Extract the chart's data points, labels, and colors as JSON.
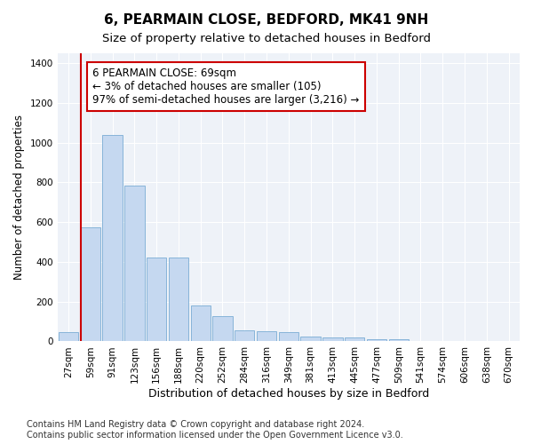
{
  "title": "6, PEARMAIN CLOSE, BEDFORD, MK41 9NH",
  "subtitle": "Size of property relative to detached houses in Bedford",
  "xlabel": "Distribution of detached houses by size in Bedford",
  "ylabel": "Number of detached properties",
  "categories": [
    "27sqm",
    "59sqm",
    "91sqm",
    "123sqm",
    "156sqm",
    "188sqm",
    "220sqm",
    "252sqm",
    "284sqm",
    "316sqm",
    "349sqm",
    "381sqm",
    "413sqm",
    "445sqm",
    "477sqm",
    "509sqm",
    "541sqm",
    "574sqm",
    "606sqm",
    "638sqm",
    "670sqm"
  ],
  "values": [
    47,
    575,
    1040,
    785,
    420,
    420,
    180,
    125,
    55,
    50,
    48,
    25,
    22,
    20,
    13,
    10,
    0,
    0,
    0,
    0,
    0
  ],
  "bar_color": "#c5d8f0",
  "bar_edge_color": "#7aadd4",
  "vline_color": "#cc0000",
  "annotation_text": "6 PEARMAIN CLOSE: 69sqm\n← 3% of detached houses are smaller (105)\n97% of semi-detached houses are larger (3,216) →",
  "annotation_box_color": "white",
  "annotation_box_edge": "#cc0000",
  "ylim": [
    0,
    1450
  ],
  "yticks": [
    0,
    200,
    400,
    600,
    800,
    1000,
    1200,
    1400
  ],
  "background_color": "#eef2f8",
  "grid_color": "#ffffff",
  "footer": "Contains HM Land Registry data © Crown copyright and database right 2024.\nContains public sector information licensed under the Open Government Licence v3.0.",
  "title_fontsize": 11,
  "subtitle_fontsize": 9.5,
  "xlabel_fontsize": 9,
  "ylabel_fontsize": 8.5,
  "tick_fontsize": 7.5,
  "annotation_fontsize": 8.5,
  "footer_fontsize": 7
}
